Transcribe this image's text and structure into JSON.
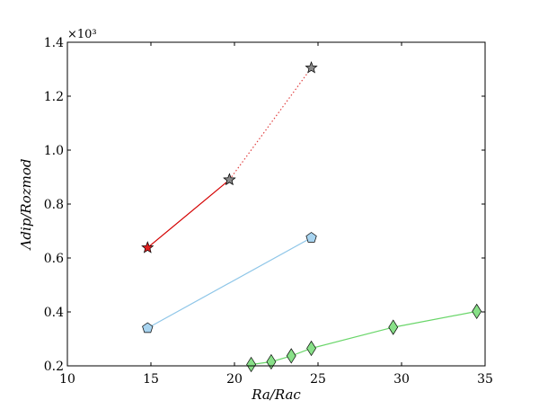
{
  "chart_data": {
    "type": "scatter",
    "xlabel": "Ra/Ra_c",
    "ylabel": "Λ^dip / Ro_z^mod",
    "xlabel_text": "Ra/Rac",
    "ylabel_text": "Λdip/Rozmod",
    "multiplier": "×10³",
    "xlim": [
      10,
      35
    ],
    "ylim": [
      0.2,
      1.4
    ],
    "x_ticks": [
      "10",
      "15",
      "20",
      "25",
      "30",
      "35"
    ],
    "y_ticks": [
      "0.2",
      "0.4",
      "0.6",
      "0.8",
      "1.0",
      "1.2",
      "1.4"
    ],
    "grid": false,
    "series": [
      {
        "marker": "star",
        "color": "#d40000",
        "marker_fill": "#e02020",
        "x": [
          14.8,
          19.7
        ],
        "y": [
          0.638,
          0.89
        ],
        "line": "solid"
      },
      {
        "marker": "star",
        "color": "#e04040",
        "marker_fill": "#8a8a8a",
        "x": [
          19.7,
          24.6
        ],
        "y": [
          0.89,
          1.305
        ],
        "line": "dotted"
      },
      {
        "marker": "pentagon",
        "color": "#8ec6e8",
        "marker_fill": "#a8d4f0",
        "x": [
          14.8,
          24.6
        ],
        "y": [
          0.34,
          0.675
        ],
        "line": "solid"
      },
      {
        "marker": "diamond",
        "color": "#6ad66a",
        "marker_fill": "#88e088",
        "x": [
          21.0,
          22.2,
          23.4,
          24.6,
          29.5,
          34.5
        ],
        "y": [
          0.205,
          0.215,
          0.237,
          0.265,
          0.343,
          0.402
        ],
        "line": "solid"
      }
    ]
  }
}
